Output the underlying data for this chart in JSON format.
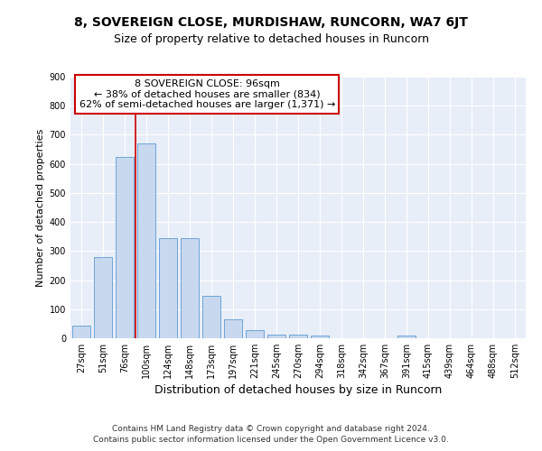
{
  "title1": "8, SOVEREIGN CLOSE, MURDISHAW, RUNCORN, WA7 6JT",
  "title2": "Size of property relative to detached houses in Runcorn",
  "xlabel": "Distribution of detached houses by size in Runcorn",
  "ylabel": "Number of detached properties",
  "categories": [
    "27sqm",
    "51sqm",
    "76sqm",
    "100sqm",
    "124sqm",
    "148sqm",
    "173sqm",
    "197sqm",
    "221sqm",
    "245sqm",
    "270sqm",
    "294sqm",
    "318sqm",
    "342sqm",
    "367sqm",
    "391sqm",
    "415sqm",
    "439sqm",
    "464sqm",
    "488sqm",
    "512sqm"
  ],
  "values": [
    42,
    280,
    625,
    670,
    345,
    345,
    145,
    65,
    28,
    13,
    13,
    10,
    0,
    0,
    0,
    8,
    0,
    0,
    0,
    0,
    0
  ],
  "bar_color": "#c8d8ee",
  "bar_edgecolor": "#5b9bd5",
  "vline_position": 2.5,
  "vline_color": "#cc0000",
  "annotation_line1": "8 SOVEREIGN CLOSE: 96sqm",
  "annotation_line2": "← 38% of detached houses are smaller (834)",
  "annotation_line3": "62% of semi-detached houses are larger (1,371) →",
  "annotation_box_edgecolor": "#cc0000",
  "footer_line1": "Contains HM Land Registry data © Crown copyright and database right 2024.",
  "footer_line2": "Contains public sector information licensed under the Open Government Licence v3.0.",
  "ylim": [
    0,
    900
  ],
  "yticks": [
    0,
    100,
    200,
    300,
    400,
    500,
    600,
    700,
    800,
    900
  ],
  "background_color": "#e8eef8",
  "grid_color": "#ffffff",
  "title1_fontsize": 10,
  "title2_fontsize": 9,
  "xlabel_fontsize": 9,
  "ylabel_fontsize": 8,
  "tick_fontsize": 7,
  "annotation_fontsize": 8,
  "footer_fontsize": 6.5
}
